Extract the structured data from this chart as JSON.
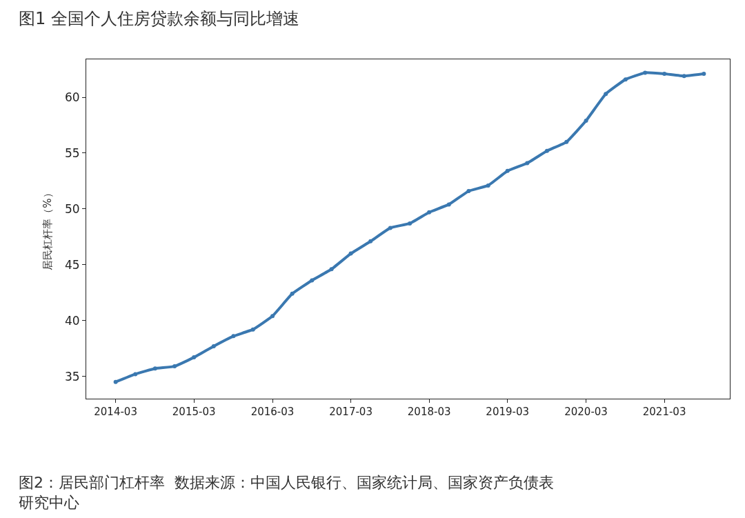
{
  "chart_data": {
    "type": "line",
    "ylabel": "居民杠杆率（%）",
    "annotations": [
      "图1 全国个人住房贷款余额与同比增速",
      "图2：居民部门杠杆率  数据来源：中国人民银行、国家统计局、国家资产负债表研究中心"
    ],
    "x": [
      "2014-03",
      "2014-06",
      "2014-09",
      "2014-12",
      "2015-03",
      "2015-06",
      "2015-09",
      "2015-12",
      "2016-03",
      "2016-06",
      "2016-09",
      "2016-12",
      "2017-03",
      "2017-06",
      "2017-09",
      "2017-12",
      "2018-03",
      "2018-06",
      "2018-09",
      "2018-12",
      "2019-03",
      "2019-06",
      "2019-09",
      "2019-12",
      "2020-03",
      "2020-06",
      "2020-09",
      "2020-12",
      "2021-03",
      "2021-06",
      "2021-09"
    ],
    "series": [
      {
        "color": "#3a78b0",
        "values": [
          34.5,
          35.2,
          35.7,
          35.9,
          36.7,
          37.7,
          38.6,
          39.2,
          40.4,
          42.4,
          43.6,
          44.6,
          46.0,
          47.1,
          48.3,
          48.7,
          49.7,
          50.4,
          51.6,
          52.1,
          53.4,
          54.1,
          55.2,
          56.0,
          57.9,
          60.3,
          61.6,
          62.2,
          62.1,
          61.9,
          62.1
        ]
      }
    ],
    "xlim": [
      "2013-10-15",
      "2021-12-31"
    ],
    "ylim": [
      33.0,
      63.4
    ],
    "xticks": [
      "2014-03",
      "2015-03",
      "2016-03",
      "2017-03",
      "2018-03",
      "2019-03",
      "2020-03",
      "2021-03"
    ],
    "yticks": [
      35,
      40,
      45,
      50,
      55,
      60
    ],
    "marker": "circle",
    "line_style": "solid"
  }
}
